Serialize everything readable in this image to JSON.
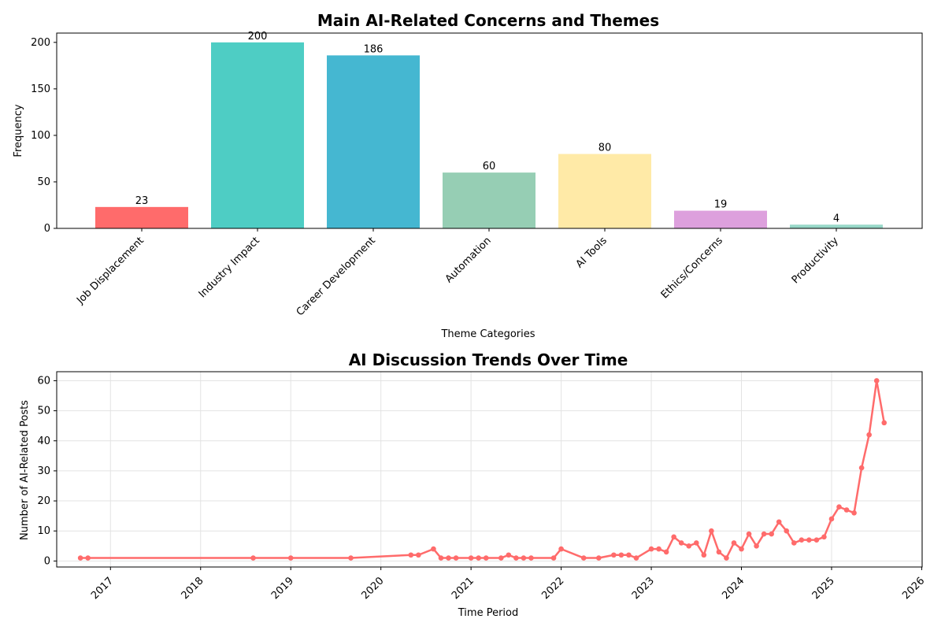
{
  "chart_data": [
    {
      "type": "bar",
      "title": "Main AI-Related Concerns and Themes",
      "xlabel": "Theme Categories",
      "ylabel": "Frequency",
      "categories": [
        "Job Displacement",
        "Industry Impact",
        "Career Development",
        "Automation",
        "AI Tools",
        "Ethics/Concerns",
        "Productivity"
      ],
      "values": [
        23,
        200,
        186,
        60,
        80,
        19,
        4
      ],
      "colors": [
        "#FF6B6B",
        "#4ECDC4",
        "#45B7D1",
        "#96CEB4",
        "#FFEAA7",
        "#DDA0DD",
        "#98D8C8"
      ],
      "ylim": [
        0,
        210
      ],
      "yticks": [
        0,
        50,
        100,
        150,
        200
      ],
      "grid": false
    },
    {
      "type": "line",
      "title": "AI Discussion Trends Over Time",
      "xlabel": "Time Period",
      "ylabel": "Number of AI-Related Posts",
      "color": "#FF6B6B",
      "grid": true,
      "xlim": [
        "2016-05",
        "2026-01"
      ],
      "xticks": [
        "2017",
        "2018",
        "2019",
        "2020",
        "2021",
        "2022",
        "2023",
        "2024",
        "2025",
        "2026"
      ],
      "ylim": [
        -2,
        63
      ],
      "yticks": [
        0,
        10,
        20,
        30,
        40,
        50,
        60
      ],
      "x": [
        "2016-09",
        "2016-10",
        "2018-08",
        "2019-01",
        "2019-09",
        "2020-05",
        "2020-06",
        "2020-08",
        "2020-09",
        "2020-10",
        "2020-11",
        "2021-01",
        "2021-02",
        "2021-03",
        "2021-05",
        "2021-06",
        "2021-07",
        "2021-08",
        "2021-09",
        "2021-12",
        "2022-01",
        "2022-04",
        "2022-06",
        "2022-08",
        "2022-09",
        "2022-10",
        "2022-11",
        "2023-01",
        "2023-02",
        "2023-03",
        "2023-04",
        "2023-05",
        "2023-06",
        "2023-07",
        "2023-08",
        "2023-09",
        "2023-10",
        "2023-11",
        "2023-12",
        "2024-01",
        "2024-02",
        "2024-03",
        "2024-04",
        "2024-05",
        "2024-06",
        "2024-07",
        "2024-08",
        "2024-09",
        "2024-10",
        "2024-11",
        "2024-12",
        "2025-01",
        "2025-02",
        "2025-03",
        "2025-04",
        "2025-05",
        "2025-06",
        "2025-07",
        "2025-08"
      ],
      "y": [
        1,
        1,
        1,
        1,
        1,
        2,
        2,
        4,
        1,
        1,
        1,
        1,
        1,
        1,
        1,
        2,
        1,
        1,
        1,
        1,
        4,
        1,
        1,
        2,
        2,
        2,
        1,
        4,
        4,
        3,
        8,
        6,
        5,
        6,
        2,
        10,
        3,
        1,
        6,
        4,
        9,
        5,
        9,
        9,
        13,
        10,
        6,
        7,
        7,
        7,
        8,
        14,
        18,
        17,
        16,
        31,
        42,
        60,
        46
      ]
    }
  ]
}
